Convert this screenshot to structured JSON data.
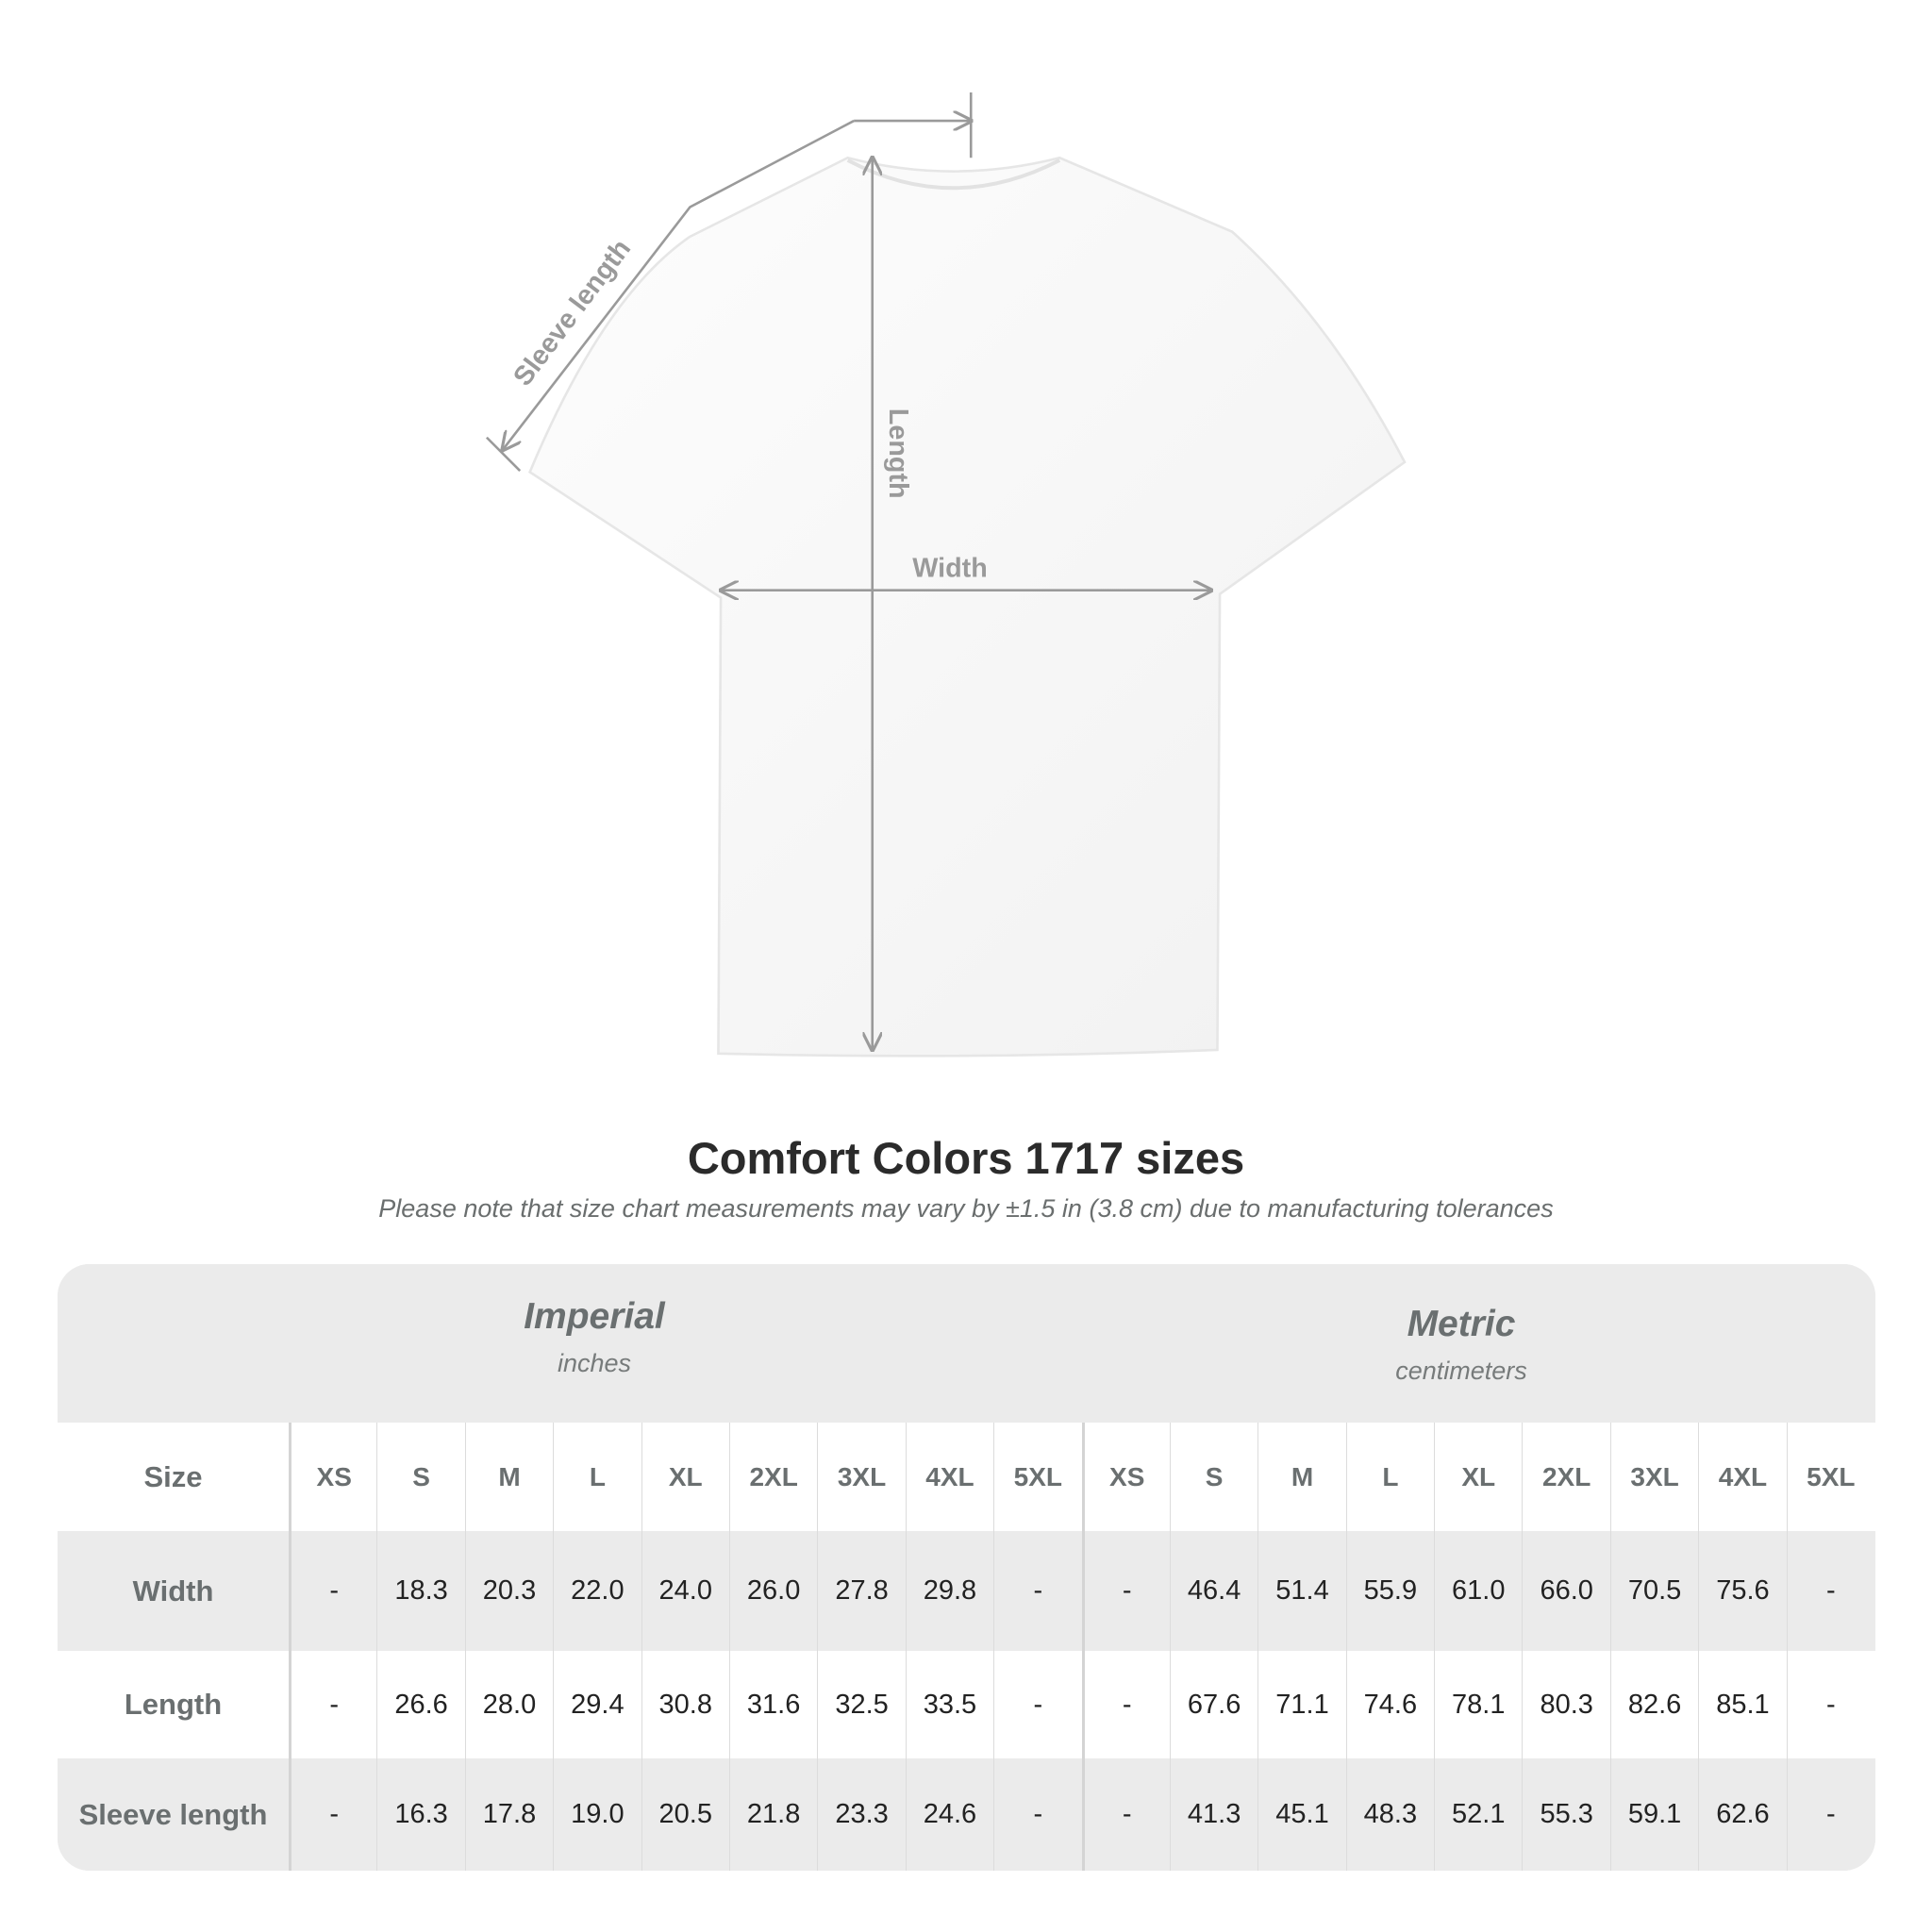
{
  "diagram": {
    "labels": {
      "sleeve": "Sleeve length",
      "length": "Length",
      "width": "Width"
    },
    "line_color": "#9a9a9a"
  },
  "title": "Comfort Colors 1717 sizes",
  "subtitle": "Please note that size chart measurements may vary by ±1.5 in (3.8 cm) due to manufacturing tolerances",
  "table": {
    "imperial": {
      "name": "Imperial",
      "unit": "inches"
    },
    "metric": {
      "name": "Metric",
      "unit": "centimeters"
    },
    "size_label": "Size",
    "sizes": [
      "XS",
      "S",
      "M",
      "L",
      "XL",
      "2XL",
      "3XL",
      "4XL",
      "5XL",
      "XS",
      "S",
      "M",
      "L",
      "XL",
      "2XL",
      "3XL",
      "4XL",
      "5XL"
    ],
    "rows": [
      {
        "label": "Width",
        "values": [
          "-",
          "18.3",
          "20.3",
          "22.0",
          "24.0",
          "26.0",
          "27.8",
          "29.8",
          "-",
          "-",
          "46.4",
          "51.4",
          "55.9",
          "61.0",
          "66.0",
          "70.5",
          "75.6",
          "-"
        ]
      },
      {
        "label": "Length",
        "values": [
          "-",
          "26.6",
          "28.0",
          "29.4",
          "30.8",
          "31.6",
          "32.5",
          "33.5",
          "-",
          "-",
          "67.6",
          "71.1",
          "74.6",
          "78.1",
          "80.3",
          "82.6",
          "85.1",
          "-"
        ]
      },
      {
        "label": "Sleeve length",
        "values": [
          "-",
          "16.3",
          "17.8",
          "19.0",
          "20.5",
          "21.8",
          "23.3",
          "24.6",
          "-",
          "-",
          "41.3",
          "45.1",
          "48.3",
          "52.1",
          "55.3",
          "59.1",
          "62.6",
          "-"
        ]
      }
    ]
  }
}
